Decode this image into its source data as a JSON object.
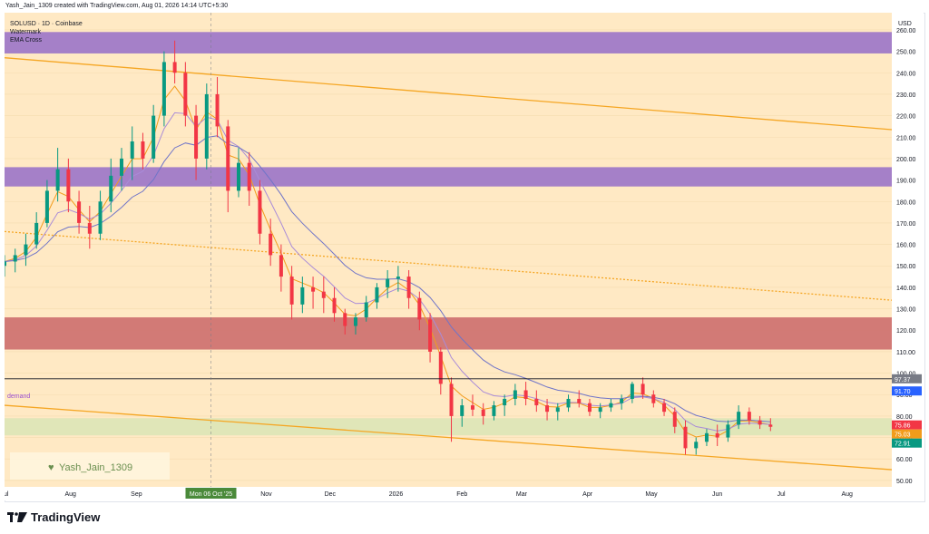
{
  "header": {
    "credit": "Yash_Jain_1309 created with TradingView.com, Aug 01, 2026 14:14 UTC+5:30"
  },
  "legend": {
    "symbol": "SOLUSD · 1D · Coinbase",
    "line2": "Watermark",
    "line3": "EMA Cross"
  },
  "currency_label": "USD",
  "watermark": {
    "text": "Yash_Jain_1309",
    "icon": "heart-icon"
  },
  "demand_label": "demand",
  "crosshair_date": "Mon 06 Oct '25",
  "footer": {
    "brand": "TradingView",
    "icon": "tradingview-logo-icon"
  },
  "colors": {
    "background": "#ffe9c4",
    "purple_zone": "#9b74c9",
    "red_zone": "#cd6e6e",
    "green_zone": "#d5e4b4",
    "trend_line": "#f5a623",
    "ema_fast": "#f29c1b",
    "ema_mid": "#a98bd8",
    "ema_slow": "#6f74c8",
    "up_candle": "#089981",
    "down_candle": "#f23645",
    "marker_blue": "#2962ff",
    "marker_red": "#f23645",
    "marker_orange": "#f29c1b",
    "marker_teal": "#089981",
    "marker_dark": "#787b86"
  },
  "chart_data": {
    "type": "candlestick",
    "symbol": "SOLUSD",
    "timeframe": "1D",
    "exchange": "Coinbase",
    "ylim": [
      47,
      268
    ],
    "y_ticks": [
      50,
      60,
      70,
      80,
      90,
      100,
      110,
      120,
      130,
      140,
      150,
      160,
      170,
      180,
      190,
      200,
      210,
      220,
      230,
      240,
      250,
      260
    ],
    "x_ticks": [
      "Jul",
      "Aug",
      "Sep",
      "Nov",
      "Dec",
      "2026",
      "Feb",
      "Mar",
      "Apr",
      "May",
      "Jun",
      "Jul",
      "Aug"
    ],
    "x_tick_dates": [
      "2025-07-01",
      "2025-08-01",
      "2025-09-01",
      "2025-11-01",
      "2025-12-01",
      "2026-01-01",
      "2026-02-01",
      "2026-03-01",
      "2026-04-01",
      "2026-05-01",
      "2026-06-01",
      "2026-07-01",
      "2026-08-01"
    ],
    "x_range": [
      "2025-07-01",
      "2026-08-22"
    ],
    "crosshair_date": "2025-10-06",
    "price_markers": [
      {
        "value": 97.37,
        "label": "97.37",
        "color": "#787b86"
      },
      {
        "value": 91.7,
        "label": "91.70",
        "color": "#2962ff"
      },
      {
        "value": 75.86,
        "label": "75.86",
        "color": "#f23645"
      },
      {
        "value": 75.03,
        "label": "75.03",
        "color": "#f29c1b"
      },
      {
        "value": 72.91,
        "label": "72.91",
        "color": "#089981"
      }
    ],
    "horizontal_line": 97.37,
    "zones": [
      {
        "name": "upper-purple-zone",
        "from": 249,
        "to": 259,
        "color": "#9b74c9"
      },
      {
        "name": "middle-purple-zone",
        "from": 187,
        "to": 196,
        "color": "#9b74c9"
      },
      {
        "name": "red-zone",
        "from": 111,
        "to": 126,
        "color": "#cd6e6e"
      },
      {
        "name": "demand-zone",
        "from": 71,
        "to": 79,
        "color": "#d5e4b4",
        "label": "demand"
      }
    ],
    "trend_lines": [
      {
        "name": "upper-channel-line",
        "start": [
          "2025-07-01",
          247
        ],
        "end": [
          "2026-08-22",
          213.5
        ],
        "style": "solid"
      },
      {
        "name": "lower-channel-line",
        "start": [
          "2025-07-01",
          85
        ],
        "end": [
          "2026-08-22",
          55
        ],
        "style": "solid"
      },
      {
        "name": "mid-channel-line",
        "start": [
          "2025-07-01",
          166
        ],
        "end": [
          "2026-08-22",
          134
        ],
        "style": "dotted"
      }
    ],
    "candles": [
      [
        "2025-07-01",
        150,
        155,
        145,
        152
      ],
      [
        "2025-07-06",
        152,
        158,
        147,
        155
      ],
      [
        "2025-07-11",
        155,
        165,
        150,
        160
      ],
      [
        "2025-07-16",
        160,
        175,
        158,
        170
      ],
      [
        "2025-07-21",
        170,
        190,
        168,
        185
      ],
      [
        "2025-07-26",
        185,
        205,
        180,
        195
      ],
      [
        "2025-07-31",
        195,
        200,
        175,
        180
      ],
      [
        "2025-08-05",
        180,
        185,
        165,
        170
      ],
      [
        "2025-08-10",
        170,
        178,
        158,
        165
      ],
      [
        "2025-08-15",
        165,
        185,
        162,
        180
      ],
      [
        "2025-08-20",
        180,
        200,
        175,
        192
      ],
      [
        "2025-08-25",
        192,
        205,
        185,
        200
      ],
      [
        "2025-08-30",
        200,
        215,
        190,
        208
      ],
      [
        "2025-09-04",
        208,
        212,
        195,
        200
      ],
      [
        "2025-09-09",
        200,
        225,
        198,
        220
      ],
      [
        "2025-09-14",
        220,
        250,
        215,
        245
      ],
      [
        "2025-09-19",
        245,
        255,
        235,
        240
      ],
      [
        "2025-09-24",
        240,
        245,
        215,
        220
      ],
      [
        "2025-09-29",
        220,
        225,
        190,
        200
      ],
      [
        "2025-10-04",
        200,
        235,
        195,
        230
      ],
      [
        "2025-10-09",
        230,
        238,
        210,
        215
      ],
      [
        "2025-10-14",
        215,
        218,
        175,
        185
      ],
      [
        "2025-10-19",
        185,
        205,
        182,
        198
      ],
      [
        "2025-10-24",
        198,
        203,
        178,
        185
      ],
      [
        "2025-10-29",
        185,
        190,
        160,
        165
      ],
      [
        "2025-11-03",
        165,
        172,
        150,
        155
      ],
      [
        "2025-11-08",
        155,
        160,
        138,
        145
      ],
      [
        "2025-11-13",
        145,
        150,
        125,
        132
      ],
      [
        "2025-11-18",
        132,
        145,
        128,
        140
      ],
      [
        "2025-11-23",
        140,
        145,
        130,
        138
      ],
      [
        "2025-11-28",
        138,
        145,
        128,
        135
      ],
      [
        "2025-12-03",
        135,
        140,
        124,
        128
      ],
      [
        "2025-12-08",
        128,
        130,
        118,
        122
      ],
      [
        "2025-12-13",
        122,
        128,
        118,
        126
      ],
      [
        "2025-12-18",
        126,
        136,
        124,
        133
      ],
      [
        "2025-12-23",
        133,
        142,
        130,
        140
      ],
      [
        "2025-12-28",
        140,
        148,
        135,
        144
      ],
      [
        "2026-01-02",
        144,
        150,
        138,
        145
      ],
      [
        "2026-01-07",
        145,
        148,
        130,
        135
      ],
      [
        "2026-01-12",
        135,
        138,
        120,
        125
      ],
      [
        "2026-01-17",
        125,
        128,
        105,
        110
      ],
      [
        "2026-01-22",
        110,
        112,
        90,
        95
      ],
      [
        "2026-01-27",
        95,
        98,
        68,
        80
      ],
      [
        "2026-02-01",
        80,
        88,
        75,
        85
      ],
      [
        "2026-02-06",
        85,
        90,
        80,
        83
      ],
      [
        "2026-02-11",
        83,
        86,
        76,
        80
      ],
      [
        "2026-02-16",
        80,
        87,
        78,
        85
      ],
      [
        "2026-02-21",
        85,
        90,
        80,
        88
      ],
      [
        "2026-02-26",
        88,
        95,
        85,
        92
      ],
      [
        "2026-03-03",
        92,
        96,
        85,
        88
      ],
      [
        "2026-03-08",
        88,
        92,
        82,
        85
      ],
      [
        "2026-03-13",
        85,
        88,
        78,
        82
      ],
      [
        "2026-03-18",
        82,
        86,
        78,
        84
      ],
      [
        "2026-03-23",
        84,
        90,
        82,
        88
      ],
      [
        "2026-03-28",
        88,
        92,
        84,
        86
      ],
      [
        "2026-04-02",
        86,
        88,
        80,
        82
      ],
      [
        "2026-04-07",
        82,
        86,
        79,
        84
      ],
      [
        "2026-04-12",
        84,
        88,
        82,
        86
      ],
      [
        "2026-04-17",
        86,
        90,
        83,
        88
      ],
      [
        "2026-04-22",
        88,
        96,
        86,
        95
      ],
      [
        "2026-04-27",
        95,
        98,
        88,
        90
      ],
      [
        "2026-05-02",
        90,
        92,
        84,
        86
      ],
      [
        "2026-05-07",
        86,
        88,
        80,
        82
      ],
      [
        "2026-05-12",
        82,
        84,
        72,
        75
      ],
      [
        "2026-05-17",
        75,
        78,
        62,
        65
      ],
      [
        "2026-05-22",
        65,
        70,
        62,
        68
      ],
      [
        "2026-05-27",
        68,
        74,
        66,
        72
      ],
      [
        "2026-06-01",
        72,
        76,
        66,
        70
      ],
      [
        "2026-06-06",
        70,
        78,
        68,
        76
      ],
      [
        "2026-06-11",
        76,
        85,
        74,
        82
      ],
      [
        "2026-06-16",
        82,
        84,
        76,
        78
      ],
      [
        "2026-06-21",
        78,
        80,
        74,
        76
      ],
      [
        "2026-06-26",
        76,
        79,
        73,
        75
      ]
    ]
  }
}
